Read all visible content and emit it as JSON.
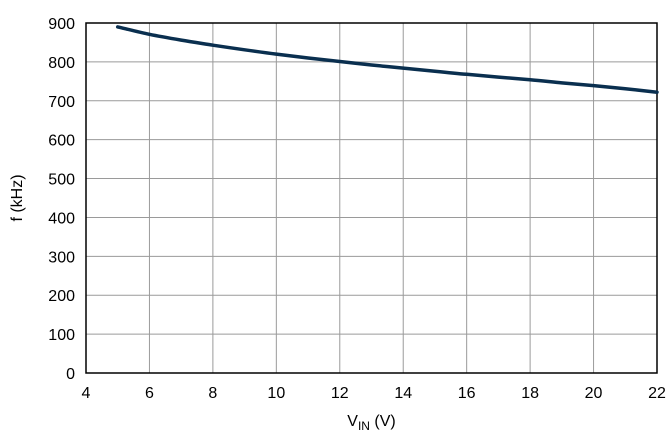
{
  "chart_data": {
    "type": "line",
    "xlabel": "V",
    "xlabel_sub": "IN",
    "xlabel_unit": " (V)",
    "ylabel": "f (kHz)",
    "xlim": [
      4,
      22
    ],
    "ylim": [
      0,
      900
    ],
    "xticks": [
      4,
      6,
      8,
      10,
      12,
      14,
      16,
      18,
      20,
      22
    ],
    "yticks": [
      0,
      100,
      200,
      300,
      400,
      500,
      600,
      700,
      800,
      900
    ],
    "grid": true,
    "line_color": "#0a2f4f",
    "series": [
      {
        "x": [
          5,
          6,
          7,
          8,
          9,
          10,
          11,
          12,
          13,
          14,
          15,
          16,
          17,
          18,
          19,
          20,
          21,
          22
        ],
        "y": [
          890,
          871,
          856,
          843,
          831,
          820,
          810,
          801,
          792,
          784,
          776,
          768,
          761,
          754,
          746,
          739,
          731,
          722
        ]
      }
    ]
  }
}
